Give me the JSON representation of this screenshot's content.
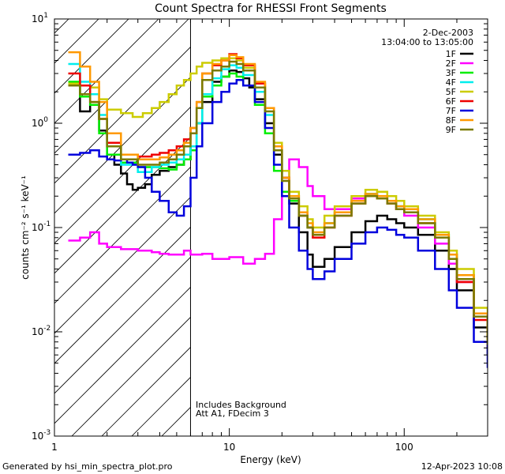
{
  "chart_data": {
    "type": "line",
    "title": "Count Spectra for RHESSI Front Segments",
    "xlabel": "Energy (keV)",
    "ylabel": "counts cm⁻² s⁻¹ keV⁻¹",
    "x_scale": "log",
    "y_scale": "log",
    "xlim": [
      1,
      300
    ],
    "ylim": [
      0.001,
      10
    ],
    "x_tick_labels": [
      {
        "value": 1,
        "label": "1"
      },
      {
        "value": 10,
        "label": "10"
      },
      {
        "value": 100,
        "label": "100"
      }
    ],
    "y_tick_labels": [
      {
        "value": 10,
        "base": "10",
        "exp": "1"
      },
      {
        "value": 1,
        "base": "10",
        "exp": "0"
      },
      {
        "value": 0.1,
        "base": "10",
        "exp": "-1"
      },
      {
        "value": 0.01,
        "base": "10",
        "exp": "-2"
      },
      {
        "value": 0.001,
        "base": "10",
        "exp": "-3"
      }
    ],
    "date": "2-Dec-2003",
    "time_range": "13:04:00 to 13:05:00",
    "annotations": [
      "Includes Background",
      "Att A1, FDecim 3"
    ],
    "threshold_keV": 6,
    "hatched_region_keV": [
      1,
      6
    ],
    "footer_left": "Generated by hsi_min_spectra_plot.pro",
    "footer_right": "12-Apr-2023 10:08",
    "series": [
      {
        "name": "1F",
        "color": "#000000",
        "x": [
          1.2,
          1.4,
          1.6,
          1.8,
          2.0,
          2.2,
          2.4,
          2.6,
          2.8,
          3.0,
          3.3,
          3.6,
          4.0,
          4.5,
          5.0,
          5.5,
          6.0,
          6.5,
          7.0,
          8.0,
          9.0,
          10.0,
          11.0,
          12.0,
          13.0,
          14.0,
          16.0,
          18.0,
          20.0,
          22.0,
          25.0,
          28.0,
          30.0,
          35.0,
          40.0,
          50.0,
          60.0,
          70.0,
          80.0,
          90.0,
          100.0,
          120.0,
          150.0,
          180.0,
          200.0,
          250.0,
          300.0
        ],
        "y": [
          2.3,
          1.3,
          1.5,
          0.85,
          0.5,
          0.4,
          0.33,
          0.26,
          0.23,
          0.24,
          0.26,
          0.32,
          0.35,
          0.38,
          0.4,
          0.45,
          0.6,
          1.0,
          1.6,
          2.5,
          2.8,
          3.2,
          3.1,
          2.7,
          2.2,
          1.7,
          1.0,
          0.5,
          0.3,
          0.17,
          0.09,
          0.055,
          0.042,
          0.05,
          0.065,
          0.09,
          0.115,
          0.13,
          0.12,
          0.11,
          0.1,
          0.085,
          0.06,
          0.04,
          0.025,
          0.011,
          0.006
        ]
      },
      {
        "name": "2F",
        "color": "#ff00ff",
        "x": [
          1.2,
          1.4,
          1.6,
          1.8,
          2.0,
          2.4,
          3.0,
          3.6,
          4.0,
          4.5,
          5.0,
          5.5,
          6.0,
          7.0,
          8.0,
          10.0,
          12.0,
          14.0,
          16.0,
          18.0,
          20.0,
          22.0,
          25.0,
          28.0,
          30.0,
          35.0,
          40.0,
          50.0,
          60.0,
          70.0,
          80.0,
          90.0,
          100.0,
          120.0,
          150.0,
          180.0,
          200.0,
          250.0,
          300.0
        ],
        "y": [
          0.075,
          0.08,
          0.09,
          0.07,
          0.065,
          0.062,
          0.06,
          0.058,
          0.056,
          0.055,
          0.055,
          0.06,
          0.055,
          0.056,
          0.05,
          0.052,
          0.045,
          0.05,
          0.056,
          0.12,
          0.3,
          0.45,
          0.38,
          0.25,
          0.2,
          0.15,
          0.15,
          0.19,
          0.21,
          0.2,
          0.18,
          0.15,
          0.13,
          0.1,
          0.07,
          0.045,
          0.03,
          0.015,
          0.009
        ]
      },
      {
        "name": "3F",
        "color": "#00ee00",
        "x": [
          1.2,
          1.4,
          1.6,
          1.8,
          2.0,
          2.4,
          3.0,
          3.6,
          4.0,
          4.5,
          5.0,
          5.5,
          6.0,
          6.5,
          7.0,
          8.0,
          9.0,
          10.0,
          11.0,
          12.0,
          14.0,
          16.0,
          18.0,
          20.0,
          22.0,
          25.0,
          28.0,
          30.0,
          35.0,
          40.0,
          50.0,
          60.0,
          70.0,
          80.0,
          90.0,
          100.0,
          120.0,
          150.0,
          180.0,
          200.0,
          250.0,
          300.0
        ],
        "y": [
          2.5,
          1.8,
          1.5,
          0.8,
          0.5,
          0.42,
          0.38,
          0.38,
          0.37,
          0.36,
          0.4,
          0.45,
          0.55,
          1.0,
          1.8,
          2.3,
          2.8,
          3.0,
          2.8,
          2.3,
          1.5,
          0.8,
          0.35,
          0.22,
          0.18,
          0.13,
          0.1,
          0.085,
          0.11,
          0.14,
          0.18,
          0.21,
          0.2,
          0.18,
          0.16,
          0.15,
          0.12,
          0.085,
          0.055,
          0.035,
          0.015,
          0.008
        ]
      },
      {
        "name": "4F",
        "color": "#00eeee",
        "x": [
          1.2,
          1.4,
          1.6,
          1.8,
          2.0,
          2.4,
          3.0,
          3.6,
          4.0,
          4.5,
          5.0,
          5.5,
          6.0,
          6.5,
          7.0,
          8.0,
          9.0,
          10.0,
          11.0,
          12.0,
          14.0,
          16.0,
          18.0,
          20.0,
          22.0,
          25.0,
          28.0,
          30.0,
          35.0,
          40.0,
          50.0,
          60.0,
          70.0,
          80.0,
          90.0,
          100.0,
          120.0,
          150.0,
          180.0,
          200.0,
          250.0,
          300.0
        ],
        "y": [
          3.7,
          2.5,
          1.9,
          1.2,
          0.6,
          0.4,
          0.34,
          0.38,
          0.4,
          0.42,
          0.45,
          0.5,
          0.6,
          1.0,
          1.9,
          2.7,
          3.3,
          3.6,
          3.4,
          2.9,
          2.0,
          1.2,
          0.55,
          0.3,
          0.2,
          0.14,
          0.1,
          0.085,
          0.11,
          0.14,
          0.18,
          0.21,
          0.2,
          0.18,
          0.16,
          0.15,
          0.12,
          0.085,
          0.055,
          0.035,
          0.015,
          0.008
        ]
      },
      {
        "name": "5F",
        "color": "#cccc00",
        "x": [
          1.2,
          1.4,
          1.6,
          1.8,
          2.0,
          2.4,
          2.8,
          3.2,
          3.6,
          4.0,
          4.5,
          5.0,
          5.5,
          6.0,
          6.5,
          7.0,
          8.0,
          9.0,
          10.0,
          11.0,
          12.0,
          14.0,
          16.0,
          18.0,
          20.0,
          22.0,
          25.0,
          28.0,
          30.0,
          35.0,
          40.0,
          50.0,
          60.0,
          70.0,
          80.0,
          90.0,
          100.0,
          120.0,
          150.0,
          180.0,
          200.0,
          250.0,
          300.0
        ],
        "y": [
          2.4,
          2.3,
          2.2,
          1.7,
          1.35,
          1.25,
          1.15,
          1.25,
          1.4,
          1.6,
          1.9,
          2.3,
          2.6,
          3.0,
          3.5,
          3.8,
          4.0,
          4.2,
          4.2,
          4.0,
          3.4,
          2.4,
          1.4,
          0.65,
          0.35,
          0.22,
          0.16,
          0.12,
          0.1,
          0.13,
          0.16,
          0.2,
          0.23,
          0.22,
          0.2,
          0.18,
          0.16,
          0.13,
          0.09,
          0.06,
          0.04,
          0.017,
          0.009
        ]
      },
      {
        "name": "6F",
        "color": "#ee0000",
        "x": [
          1.2,
          1.4,
          1.6,
          1.8,
          2.0,
          2.4,
          3.0,
          3.6,
          4.0,
          4.5,
          5.0,
          5.5,
          6.0,
          6.5,
          7.0,
          8.0,
          9.0,
          10.0,
          11.0,
          12.0,
          14.0,
          16.0,
          18.0,
          20.0,
          22.0,
          25.0,
          28.0,
          30.0,
          35.0,
          40.0,
          50.0,
          60.0,
          70.0,
          80.0,
          90.0,
          100.0,
          120.0,
          150.0,
          180.0,
          200.0,
          250.0,
          300.0
        ],
        "y": [
          3.0,
          2.3,
          1.6,
          1.1,
          0.65,
          0.5,
          0.48,
          0.5,
          0.52,
          0.55,
          0.6,
          0.7,
          0.9,
          1.6,
          3.0,
          3.6,
          4.0,
          4.6,
          4.2,
          3.6,
          2.4,
          1.4,
          0.6,
          0.3,
          0.2,
          0.13,
          0.1,
          0.08,
          0.1,
          0.13,
          0.17,
          0.2,
          0.19,
          0.17,
          0.15,
          0.14,
          0.11,
          0.08,
          0.05,
          0.03,
          0.013,
          0.007
        ]
      },
      {
        "name": "7F",
        "color": "#0000dd",
        "x": [
          1.2,
          1.4,
          1.6,
          1.8,
          2.0,
          2.2,
          2.4,
          2.6,
          2.8,
          3.0,
          3.3,
          3.6,
          4.0,
          4.5,
          5.0,
          5.5,
          6.0,
          6.5,
          7.0,
          8.0,
          9.0,
          10.0,
          11.0,
          12.0,
          14.0,
          16.0,
          18.0,
          20.0,
          22.0,
          25.0,
          28.0,
          30.0,
          35.0,
          40.0,
          50.0,
          60.0,
          70.0,
          80.0,
          90.0,
          100.0,
          120.0,
          150.0,
          180.0,
          200.0,
          250.0,
          300.0
        ],
        "y": [
          0.5,
          0.52,
          0.55,
          0.48,
          0.45,
          0.44,
          0.45,
          0.42,
          0.4,
          0.38,
          0.3,
          0.22,
          0.18,
          0.14,
          0.13,
          0.16,
          0.3,
          0.6,
          1.0,
          1.6,
          2.0,
          2.4,
          2.6,
          2.3,
          1.6,
          0.9,
          0.4,
          0.2,
          0.1,
          0.06,
          0.04,
          0.032,
          0.038,
          0.05,
          0.07,
          0.09,
          0.1,
          0.095,
          0.085,
          0.08,
          0.06,
          0.04,
          0.025,
          0.017,
          0.008,
          0.0045
        ]
      },
      {
        "name": "8F",
        "color": "#ff9900",
        "x": [
          1.2,
          1.4,
          1.6,
          1.8,
          2.0,
          2.4,
          3.0,
          3.6,
          4.0,
          4.5,
          5.0,
          5.5,
          6.0,
          6.5,
          7.0,
          8.0,
          9.0,
          10.0,
          11.0,
          12.0,
          14.0,
          16.0,
          18.0,
          20.0,
          22.0,
          25.0,
          28.0,
          30.0,
          35.0,
          40.0,
          50.0,
          60.0,
          70.0,
          80.0,
          90.0,
          100.0,
          120.0,
          150.0,
          180.0,
          200.0,
          250.0,
          300.0
        ],
        "y": [
          4.8,
          3.5,
          2.5,
          1.6,
          0.8,
          0.5,
          0.45,
          0.45,
          0.47,
          0.5,
          0.55,
          0.65,
          0.9,
          1.6,
          3.0,
          3.7,
          4.0,
          4.5,
          4.3,
          3.7,
          2.5,
          1.4,
          0.6,
          0.3,
          0.2,
          0.14,
          0.11,
          0.09,
          0.11,
          0.14,
          0.18,
          0.21,
          0.2,
          0.18,
          0.16,
          0.15,
          0.12,
          0.085,
          0.055,
          0.035,
          0.015,
          0.008
        ]
      },
      {
        "name": "9F",
        "color": "#7a7a00",
        "x": [
          1.2,
          1.4,
          1.6,
          1.8,
          2.0,
          2.4,
          3.0,
          3.6,
          4.0,
          4.5,
          5.0,
          5.5,
          6.0,
          6.5,
          7.0,
          8.0,
          9.0,
          10.0,
          11.0,
          12.0,
          14.0,
          16.0,
          18.0,
          20.0,
          22.0,
          25.0,
          28.0,
          30.0,
          35.0,
          40.0,
          50.0,
          60.0,
          70.0,
          80.0,
          90.0,
          100.0,
          120.0,
          150.0,
          180.0,
          200.0,
          250.0,
          300.0
        ],
        "y": [
          2.3,
          1.9,
          1.6,
          1.1,
          0.6,
          0.45,
          0.4,
          0.4,
          0.42,
          0.45,
          0.5,
          0.6,
          0.8,
          1.4,
          2.6,
          3.2,
          3.5,
          3.9,
          3.7,
          3.2,
          2.2,
          1.3,
          0.55,
          0.28,
          0.19,
          0.13,
          0.1,
          0.085,
          0.1,
          0.13,
          0.17,
          0.2,
          0.19,
          0.17,
          0.15,
          0.14,
          0.11,
          0.08,
          0.05,
          0.032,
          0.014,
          0.0075
        ]
      }
    ]
  }
}
